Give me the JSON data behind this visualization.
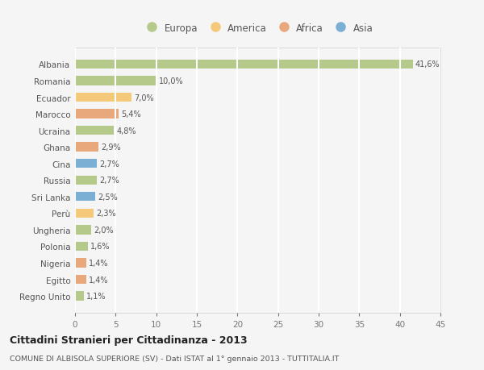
{
  "countries": [
    "Albania",
    "Romania",
    "Ecuador",
    "Marocco",
    "Ucraina",
    "Ghana",
    "Cina",
    "Russia",
    "Sri Lanka",
    "Perù",
    "Ungheria",
    "Polonia",
    "Nigeria",
    "Egitto",
    "Regno Unito"
  ],
  "values": [
    41.6,
    10.0,
    7.0,
    5.4,
    4.8,
    2.9,
    2.7,
    2.7,
    2.5,
    2.3,
    2.0,
    1.6,
    1.4,
    1.4,
    1.1
  ],
  "labels": [
    "41,6%",
    "10,0%",
    "7,0%",
    "5,4%",
    "4,8%",
    "2,9%",
    "2,7%",
    "2,7%",
    "2,5%",
    "2,3%",
    "2,0%",
    "1,6%",
    "1,4%",
    "1,4%",
    "1,1%"
  ],
  "colors": [
    "#b5c98a",
    "#b5c98a",
    "#f5c97a",
    "#e8a87c",
    "#b5c98a",
    "#e8a87c",
    "#7bafd4",
    "#b5c98a",
    "#7bafd4",
    "#f5c97a",
    "#b5c98a",
    "#b5c98a",
    "#e8a87c",
    "#e8a87c",
    "#b5c98a"
  ],
  "legend_labels": [
    "Europa",
    "America",
    "Africa",
    "Asia"
  ],
  "legend_colors": [
    "#b5c98a",
    "#f5c97a",
    "#e8a87c",
    "#7bafd4"
  ],
  "title": "Cittadini Stranieri per Cittadinanza - 2013",
  "subtitle": "COMUNE DI ALBISOLA SUPERIORE (SV) - Dati ISTAT al 1° gennaio 2013 - TUTTITALIA.IT",
  "xlim": [
    0,
    45
  ],
  "xticks": [
    0,
    5,
    10,
    15,
    20,
    25,
    30,
    35,
    40,
    45
  ],
  "bg_color": "#f5f5f5",
  "plot_bg_color": "#f5f5f5",
  "grid_color": "#ffffff",
  "bar_height": 0.55
}
